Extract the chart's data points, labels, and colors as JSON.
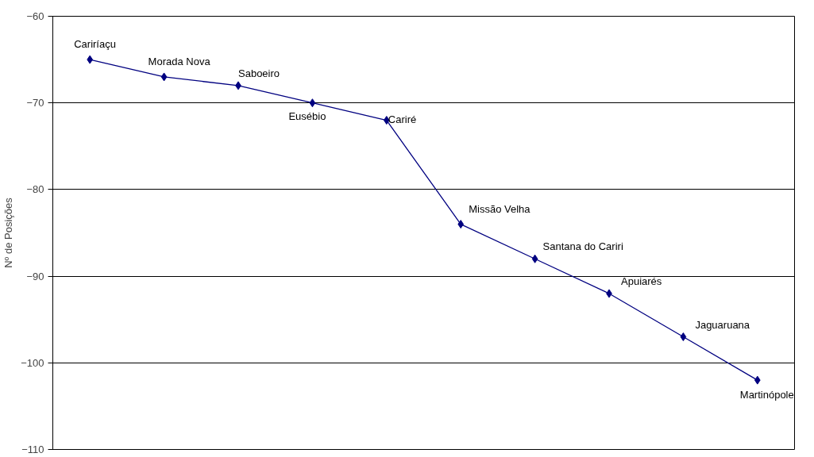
{
  "chart_data": {
    "type": "line",
    "ylabel": "Nº de Posições",
    "categories": [
      null,
      null,
      null,
      null,
      null,
      null,
      null,
      null,
      null,
      null
    ],
    "series": [
      {
        "color": "#000080",
        "values": [
          -65,
          -67,
          -68,
          -70,
          -72,
          -84,
          -88,
          -92,
          -97,
          -102
        ],
        "value_labels": [
          "Cariríaçu",
          "Morada Nova",
          "Saboeiro",
          "Eusébio",
          "Cariré",
          "Missão Velha",
          "Santana do Cariri",
          "Apuiarés",
          "Jaguaruana",
          "Martinópole"
        ]
      }
    ],
    "ylim": [
      -110,
      -60
    ],
    "yticks": [
      -110,
      -100,
      -90,
      -80,
      -70,
      -60
    ],
    "grid": "y",
    "marker": "diamond",
    "line_style": "solid",
    "tick_labels": "y"
  }
}
